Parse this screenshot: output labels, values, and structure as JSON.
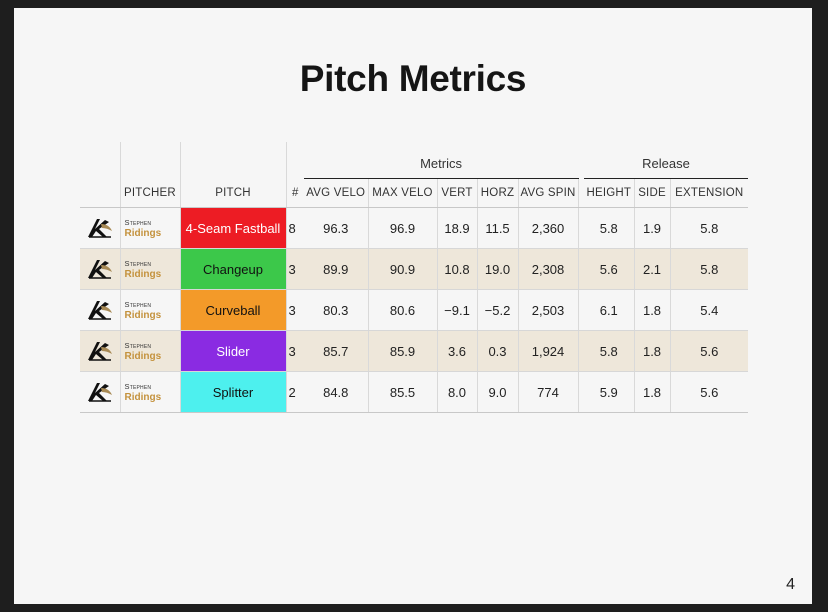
{
  "title": "Pitch Metrics",
  "page_number": "4",
  "groups": {
    "metrics": "Metrics",
    "release": "Release"
  },
  "headers": {
    "pitcher": "PITCHER",
    "pitch": "PITCH",
    "count": "#",
    "avg_velo": "AVG VELO",
    "max_velo": "MAX VELO",
    "vert": "VERT",
    "horz": "HORZ",
    "avg_spin": "AVG SPIN",
    "height": "HEIGHT",
    "side": "SIDE",
    "extension": "EXTENSION"
  },
  "pitcher": {
    "first": "Stephen",
    "last": "Ridings"
  },
  "rows": [
    {
      "pitch": "4-Seam Fastball",
      "pitch_color": "#ed1c24",
      "pitch_text_color": "#ffffff",
      "count": "8",
      "avg_velo": "96.3",
      "max_velo": "96.9",
      "vert": "18.9",
      "horz": "11.5",
      "avg_spin": "2,360",
      "height": "5.8",
      "side": "1.9",
      "extension": "5.8"
    },
    {
      "pitch": "Changeup",
      "pitch_color": "#3cc84a",
      "pitch_text_color": "#111111",
      "count": "3",
      "avg_velo": "89.9",
      "max_velo": "90.9",
      "vert": "10.8",
      "horz": "19.0",
      "avg_spin": "2,308",
      "height": "5.6",
      "side": "2.1",
      "extension": "5.8"
    },
    {
      "pitch": "Curveball",
      "pitch_color": "#f39a29",
      "pitch_text_color": "#111111",
      "count": "3",
      "avg_velo": "80.3",
      "max_velo": "80.6",
      "vert": "−9.1",
      "horz": "−5.2",
      "avg_spin": "2,503",
      "height": "6.1",
      "side": "1.8",
      "extension": "5.4"
    },
    {
      "pitch": "Slider",
      "pitch_color": "#8a2be2",
      "pitch_text_color": "#ffffff",
      "count": "3",
      "avg_velo": "85.7",
      "max_velo": "85.9",
      "vert": "3.6",
      "horz": "0.3",
      "avg_spin": "1,924",
      "height": "5.8",
      "side": "1.8",
      "extension": "5.6"
    },
    {
      "pitch": "Splitter",
      "pitch_color": "#4df0ee",
      "pitch_text_color": "#111111",
      "count": "2",
      "avg_velo": "84.8",
      "max_velo": "85.5",
      "vert": "8.0",
      "horz": "9.0",
      "avg_spin": "774",
      "height": "5.9",
      "side": "1.8",
      "extension": "5.6"
    }
  ]
}
